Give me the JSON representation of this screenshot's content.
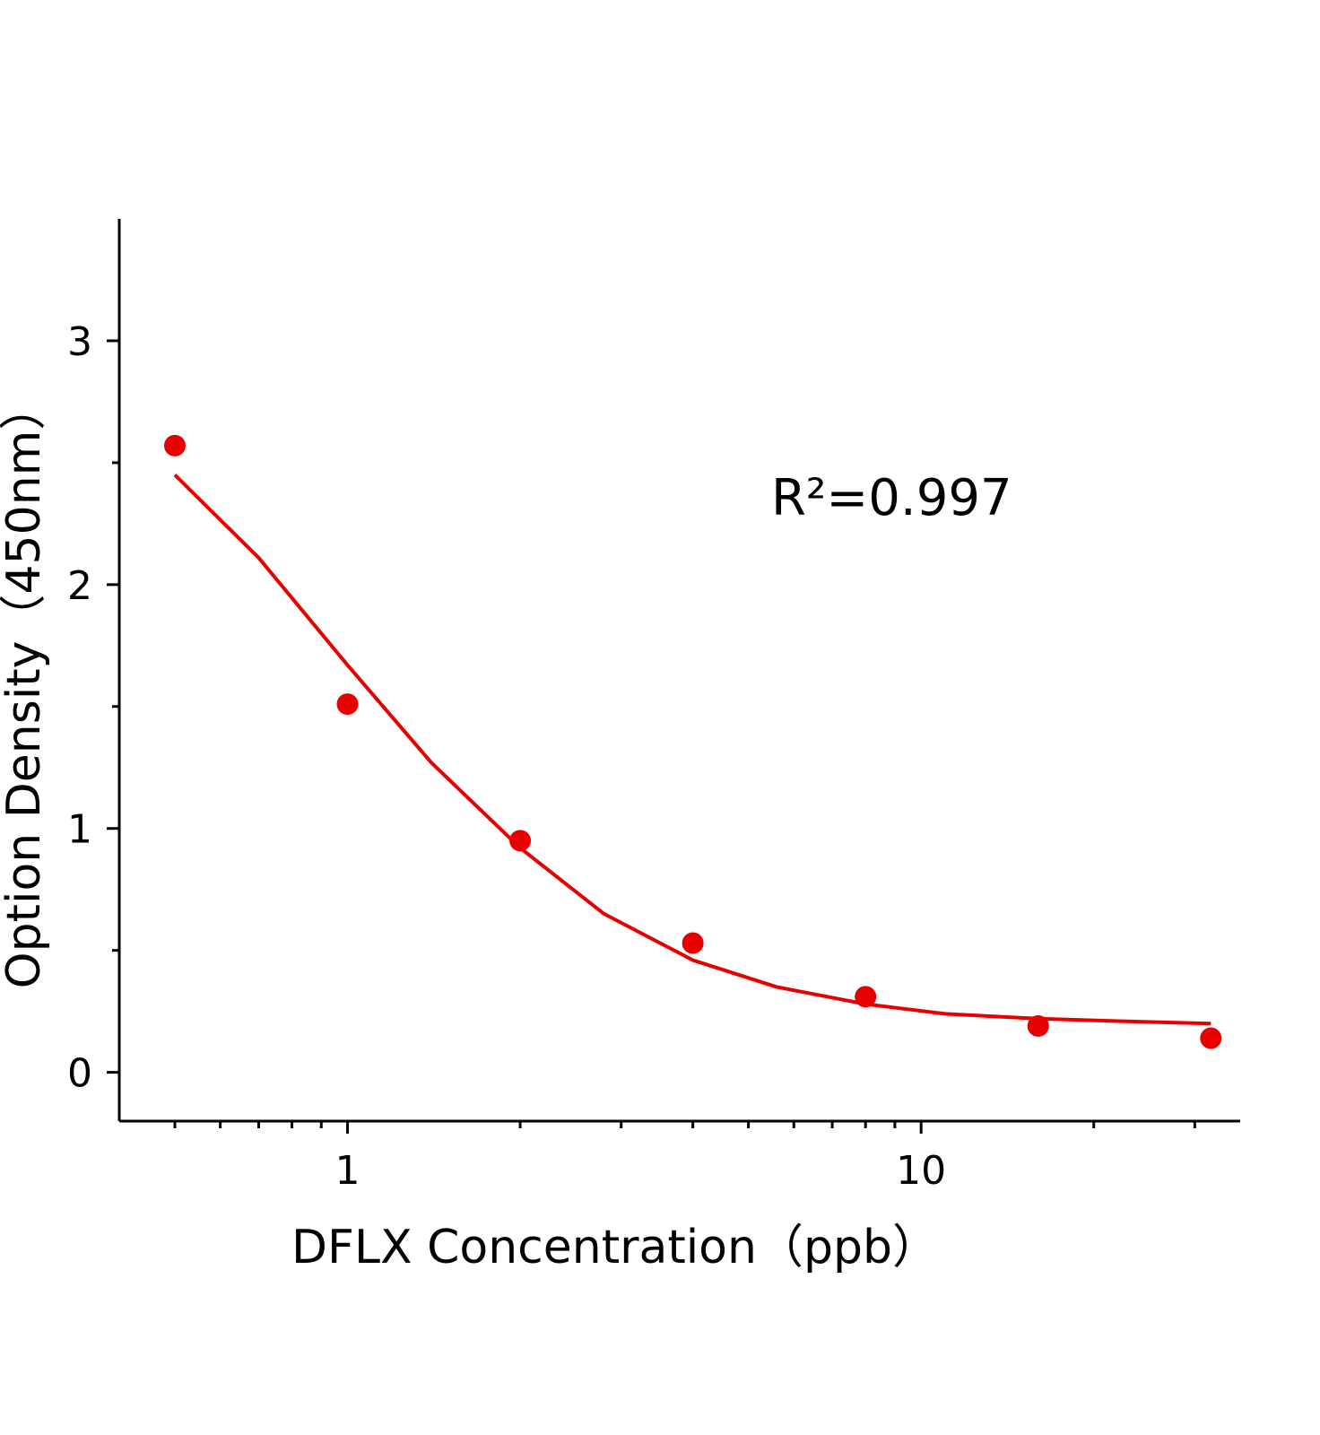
{
  "chart_data": {
    "type": "scatter",
    "xlabel": "DFLX Concentration（ppb）",
    "ylabel": "Option Density（450nm）",
    "annotation": "R²=0.997",
    "xscale": "log",
    "xlim": [
      0.4,
      36
    ],
    "ylim": [
      -0.2,
      3.5
    ],
    "xticks": [
      1,
      10
    ],
    "yticks": [
      0,
      1,
      2,
      3
    ],
    "xminorticks": [
      0.5,
      0.6,
      0.7,
      0.8,
      0.9,
      2,
      3,
      4,
      5,
      6,
      7,
      8,
      9,
      20,
      30
    ],
    "yminorticks": [
      0.5,
      1.5,
      2.5
    ],
    "series": [
      {
        "kind": "points",
        "color": "#e60000",
        "x": [
          0.5,
          1,
          2,
          4,
          8,
          16,
          32
        ],
        "values": [
          2.57,
          1.51,
          0.95,
          0.53,
          0.31,
          0.19,
          0.14
        ]
      },
      {
        "kind": "line",
        "color": "#e60000",
        "x": [
          0.5,
          0.7,
          1,
          1.4,
          2,
          2.8,
          4,
          5.6,
          8,
          11,
          16,
          22,
          32
        ],
        "values": [
          2.45,
          2.11,
          1.67,
          1.27,
          0.92,
          0.65,
          0.46,
          0.35,
          0.28,
          0.24,
          0.22,
          0.21,
          0.2
        ]
      }
    ]
  }
}
